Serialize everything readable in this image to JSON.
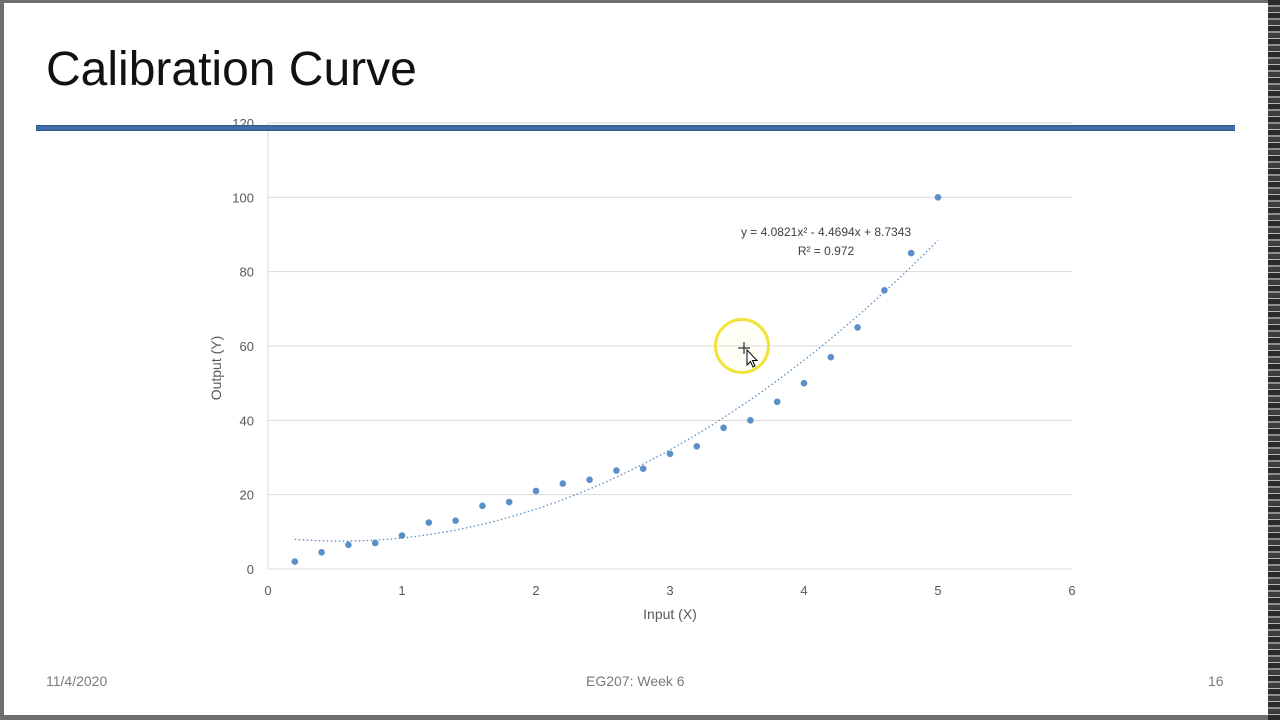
{
  "slide": {
    "title": "Calibration Curve",
    "footer_date": "11/4/2020",
    "footer_course": "EG207: Week 6",
    "slide_number": "16"
  },
  "chart_data": {
    "type": "scatter",
    "title": "",
    "xlabel": "Input (X)",
    "ylabel": "Output (Y)",
    "xlim": [
      0,
      6
    ],
    "ylim": [
      0,
      120
    ],
    "xticks": [
      "0",
      "1",
      "2",
      "3",
      "4",
      "5",
      "6"
    ],
    "yticks": [
      "0",
      "20",
      "40",
      "60",
      "80",
      "100",
      "120"
    ],
    "grid": "horizontal",
    "legend": "none",
    "marker_color": "#5b8fc7",
    "series": [
      {
        "x": [
          0.2,
          0.4,
          0.6,
          0.8,
          1.0,
          1.2,
          1.4,
          1.6,
          1.8,
          2.0,
          2.2,
          2.4,
          2.6,
          2.8,
          3.0,
          3.2,
          3.4,
          3.6,
          3.8,
          4.0,
          4.2,
          4.4,
          4.6,
          4.8,
          5.0
        ],
        "y": [
          2,
          4.5,
          6.5,
          7,
          9,
          12.5,
          13,
          17,
          18,
          21,
          23,
          24,
          26.5,
          27,
          31,
          33,
          38,
          40,
          45,
          50,
          57,
          65,
          75,
          85,
          100
        ]
      }
    ],
    "trendline": {
      "type": "polynomial",
      "coefficients": [
        4.0821,
        -4.4694,
        8.7343
      ],
      "x_range": [
        0.2,
        5.0
      ],
      "style": "dotted",
      "color": "#5b8fc7",
      "equation_label": "y = 4.0821x² - 4.4694x + 8.7343",
      "r2_label": "R² = 0.972"
    }
  }
}
